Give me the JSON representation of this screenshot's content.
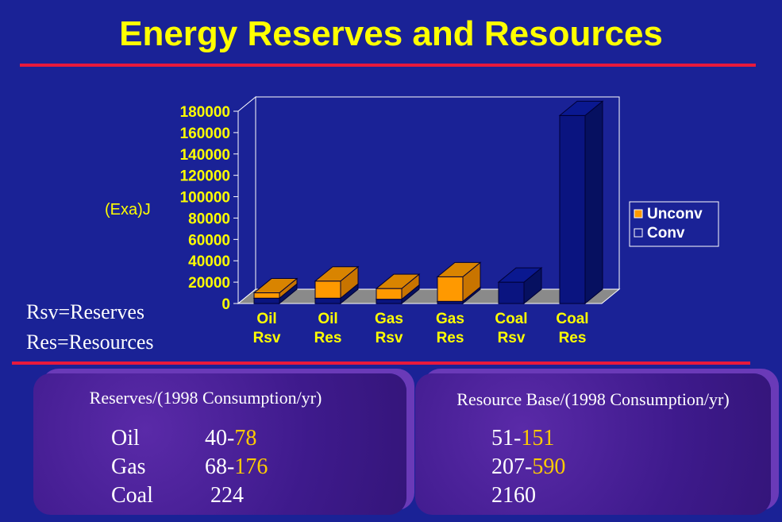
{
  "title": "Energy Reserves and Resources",
  "notes": [
    "Rsv=Reserves",
    "Res=Resources"
  ],
  "chart_data": {
    "type": "bar",
    "stacked": true,
    "ylabel": "(Exa)J",
    "ylim": [
      0,
      180000
    ],
    "yticks": [
      0,
      20000,
      40000,
      60000,
      80000,
      100000,
      120000,
      140000,
      160000,
      180000
    ],
    "categories": [
      [
        "Oil",
        "Rsv"
      ],
      [
        "Oil",
        "Res"
      ],
      [
        "Gas",
        "Rsv"
      ],
      [
        "Gas",
        "Res"
      ],
      [
        "Coal",
        "Rsv"
      ],
      [
        "Coal",
        "Res"
      ]
    ],
    "series": [
      {
        "name": "Conv",
        "values": [
          5000,
          5000,
          4000,
          2000,
          20000,
          176000
        ],
        "color": "#0a1480"
      },
      {
        "name": "Unconv",
        "values": [
          5000,
          16000,
          10000,
          23000,
          0,
          0
        ],
        "color": "#ff9900"
      }
    ],
    "legend": "right"
  },
  "panels": {
    "reserves": {
      "title": "Reserves/(1998 Consumption/yr)",
      "rows": [
        {
          "label": "Oil",
          "low": "40-",
          "high": "78"
        },
        {
          "label": "Gas",
          "low": "68-",
          "high": "176"
        },
        {
          "label": "Coal",
          "low": " 224",
          "high": ""
        }
      ]
    },
    "resources": {
      "title": "Resource Base/(1998 Consumption/yr)",
      "rows": [
        {
          "low": "51-",
          "high": "151"
        },
        {
          "low": "207-",
          "high": "590"
        },
        {
          "low": "2160",
          "high": ""
        }
      ]
    }
  }
}
